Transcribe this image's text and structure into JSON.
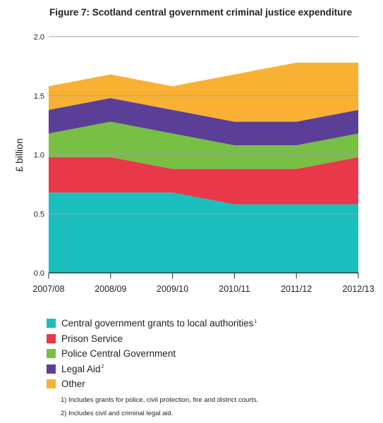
{
  "figure": {
    "title": "Figure 7: Scotland central government criminal justice expenditure"
  },
  "chart_data": {
    "type": "area",
    "stacked": true,
    "categories": [
      "2007/08",
      "2008/09",
      "2009/10",
      "2010/11",
      "2011/12",
      "2012/13"
    ],
    "ylabel": "£ billion",
    "xlabel": "",
    "ylim": [
      0,
      2.0
    ],
    "yticks": [
      "0.0",
      "0.5",
      "1.0",
      "1.5",
      "2.0"
    ],
    "grid": false,
    "legend_position": "bottom",
    "series": [
      {
        "name": "Central government grants to local authorities",
        "footnote_mark": "1",
        "color": "#1bbfbd",
        "values": [
          0.68,
          0.68,
          0.68,
          0.58,
          0.58,
          0.58
        ]
      },
      {
        "name": "Prison Service",
        "footnote_mark": "",
        "color": "#e8384a",
        "values": [
          0.3,
          0.3,
          0.2,
          0.3,
          0.3,
          0.4
        ]
      },
      {
        "name": "Police Central Government",
        "footnote_mark": "",
        "color": "#77c044",
        "values": [
          0.2,
          0.3,
          0.3,
          0.2,
          0.2,
          0.2
        ]
      },
      {
        "name": "Legal Aid",
        "footnote_mark": "2",
        "color": "#5b3e96",
        "values": [
          0.2,
          0.2,
          0.2,
          0.2,
          0.2,
          0.2
        ]
      },
      {
        "name": "Other",
        "footnote_mark": "",
        "color": "#f8b133",
        "values": [
          0.2,
          0.2,
          0.2,
          0.4,
          0.5,
          0.4
        ]
      }
    ]
  },
  "footnotes": [
    "1) Includes grants for police, civil protection, fire and district courts.",
    "2) Includes civil and criminal legal aid."
  ]
}
